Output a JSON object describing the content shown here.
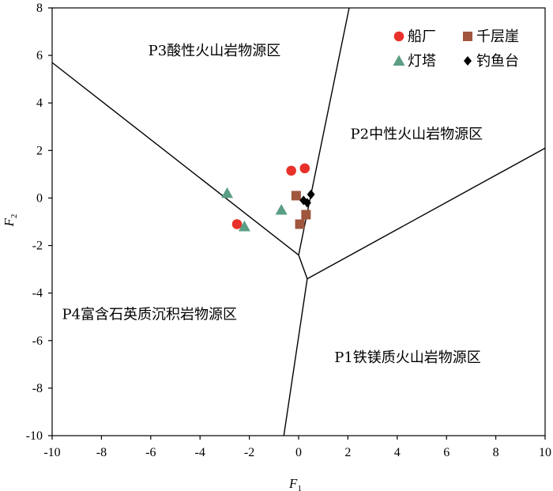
{
  "chart_data": {
    "type": "scatter",
    "title": "",
    "xlabel": "F",
    "xlabel_sub": "1",
    "ylabel": "F",
    "ylabel_sub": "2",
    "xlim": [
      -10,
      10
    ],
    "ylim": [
      -10,
      8
    ],
    "xticks": [
      -10,
      -8,
      -6,
      -4,
      -2,
      0,
      2,
      4,
      6,
      8,
      10
    ],
    "yticks": [
      -10,
      -8,
      -6,
      -4,
      -2,
      0,
      2,
      4,
      6,
      8
    ],
    "grid": false,
    "legend_position": "top-right",
    "colors": {
      "船厂": "#e8312a",
      "千层崖": "#a0553d",
      "灯塔": "#5a9e84",
      "钓鱼台": "#000000"
    },
    "series": [
      {
        "name": "船厂",
        "marker": "circle",
        "points": [
          [
            -0.3,
            1.15
          ],
          [
            0.25,
            1.25
          ],
          [
            -2.5,
            -1.1
          ]
        ]
      },
      {
        "name": "千层崖",
        "marker": "square",
        "points": [
          [
            -0.1,
            0.1
          ],
          [
            0.3,
            -0.7
          ],
          [
            0.05,
            -1.1
          ]
        ]
      },
      {
        "name": "灯塔",
        "marker": "triangle",
        "points": [
          [
            -2.9,
            0.2
          ],
          [
            -2.2,
            -1.2
          ],
          [
            -0.7,
            -0.5
          ]
        ]
      },
      {
        "name": "钓鱼台",
        "marker": "diamond",
        "points": [
          [
            0.2,
            -0.1
          ],
          [
            0.35,
            -0.2
          ],
          [
            0.5,
            0.15
          ]
        ]
      }
    ],
    "boundaries": [
      [
        [
          -10,
          5.7
        ],
        [
          0,
          -2.4
        ],
        [
          0.35,
          -3.4
        ],
        [
          -0.6,
          -10
        ]
      ],
      [
        [
          0,
          -2.4
        ],
        [
          2.05,
          8
        ]
      ],
      [
        [
          0.35,
          -3.4
        ],
        [
          10,
          2.1
        ]
      ]
    ],
    "regions": [
      {
        "label": "P3酸性火山岩物源区",
        "x": -6.1,
        "y": 6
      },
      {
        "label": "P2中性火山岩物源区",
        "x": 2.1,
        "y": 2.5
      },
      {
        "label": "P4富含石英质沉积岩物源区",
        "x": -9.6,
        "y": -5.1
      },
      {
        "label": "P1铁镁质火山岩物源区",
        "x": 1.45,
        "y": -6.9
      }
    ]
  }
}
